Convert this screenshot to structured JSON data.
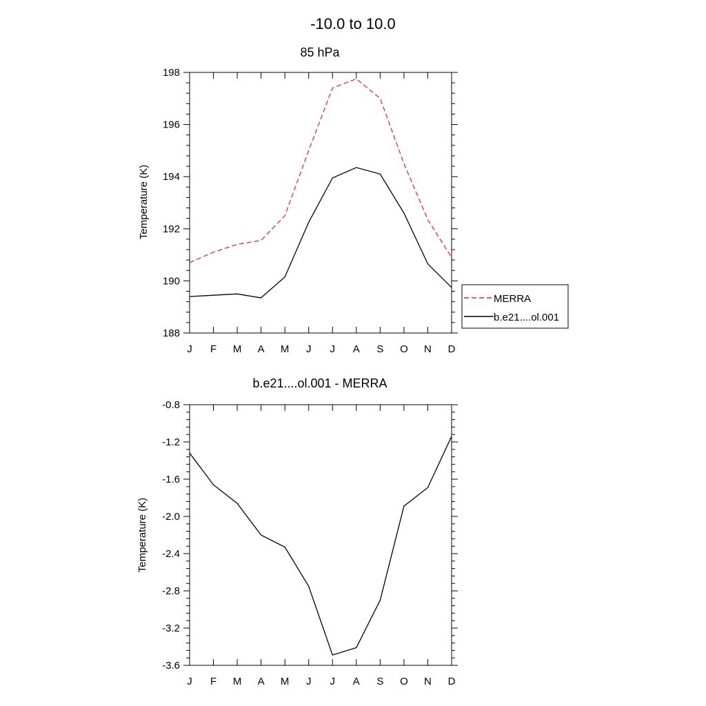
{
  "figure": {
    "title": "-10.0 to  10.0"
  },
  "colors": {
    "merra": "#e8292a",
    "model": "#000000"
  },
  "chart_data": [
    {
      "type": "line",
      "title": "85 hPa",
      "xlabel": "",
      "ylabel": "Temperature (K)",
      "categories": [
        "J",
        "F",
        "M",
        "A",
        "M",
        "J",
        "J",
        "A",
        "S",
        "O",
        "N",
        "D"
      ],
      "ylim": [
        188,
        198
      ],
      "yticks": [
        188,
        190,
        192,
        194,
        196,
        198
      ],
      "grid": false,
      "legend_position": "right",
      "series": [
        {
          "name": "MERRA",
          "style": "dashed",
          "color": "#e8292a",
          "values": [
            190.7,
            191.1,
            191.4,
            191.55,
            192.5,
            195.0,
            197.4,
            197.75,
            197.0,
            194.5,
            192.35,
            190.9
          ]
        },
        {
          "name": "b.e21....ol.001",
          "style": "solid",
          "color": "#000000",
          "values": [
            189.4,
            189.45,
            189.5,
            189.35,
            190.15,
            192.25,
            193.95,
            194.35,
            194.1,
            192.6,
            190.65,
            189.75
          ]
        }
      ]
    },
    {
      "type": "line",
      "title": "b.e21....ol.001 - MERRA",
      "xlabel": "",
      "ylabel": "Temperature (K)",
      "categories": [
        "J",
        "F",
        "M",
        "A",
        "M",
        "J",
        "J",
        "A",
        "S",
        "O",
        "N",
        "D"
      ],
      "ylim": [
        -3.6,
        -0.8
      ],
      "yticks": [
        -3.6,
        -3.2,
        -2.8,
        -2.4,
        -2.0,
        -1.6,
        -1.2,
        -0.8
      ],
      "ytick_labels": [
        "-3.6",
        "-3.2",
        "-2.8",
        "-2.4",
        "-2.0",
        "-1.6",
        "-1.2",
        "-0.8"
      ],
      "grid": false,
      "series": [
        {
          "style": "solid",
          "color": "#000000",
          "values": [
            -1.32,
            -1.66,
            -1.86,
            -2.2,
            -2.33,
            -2.75,
            -3.49,
            -3.41,
            -2.9,
            -1.89,
            -1.69,
            -1.14
          ]
        }
      ]
    }
  ]
}
